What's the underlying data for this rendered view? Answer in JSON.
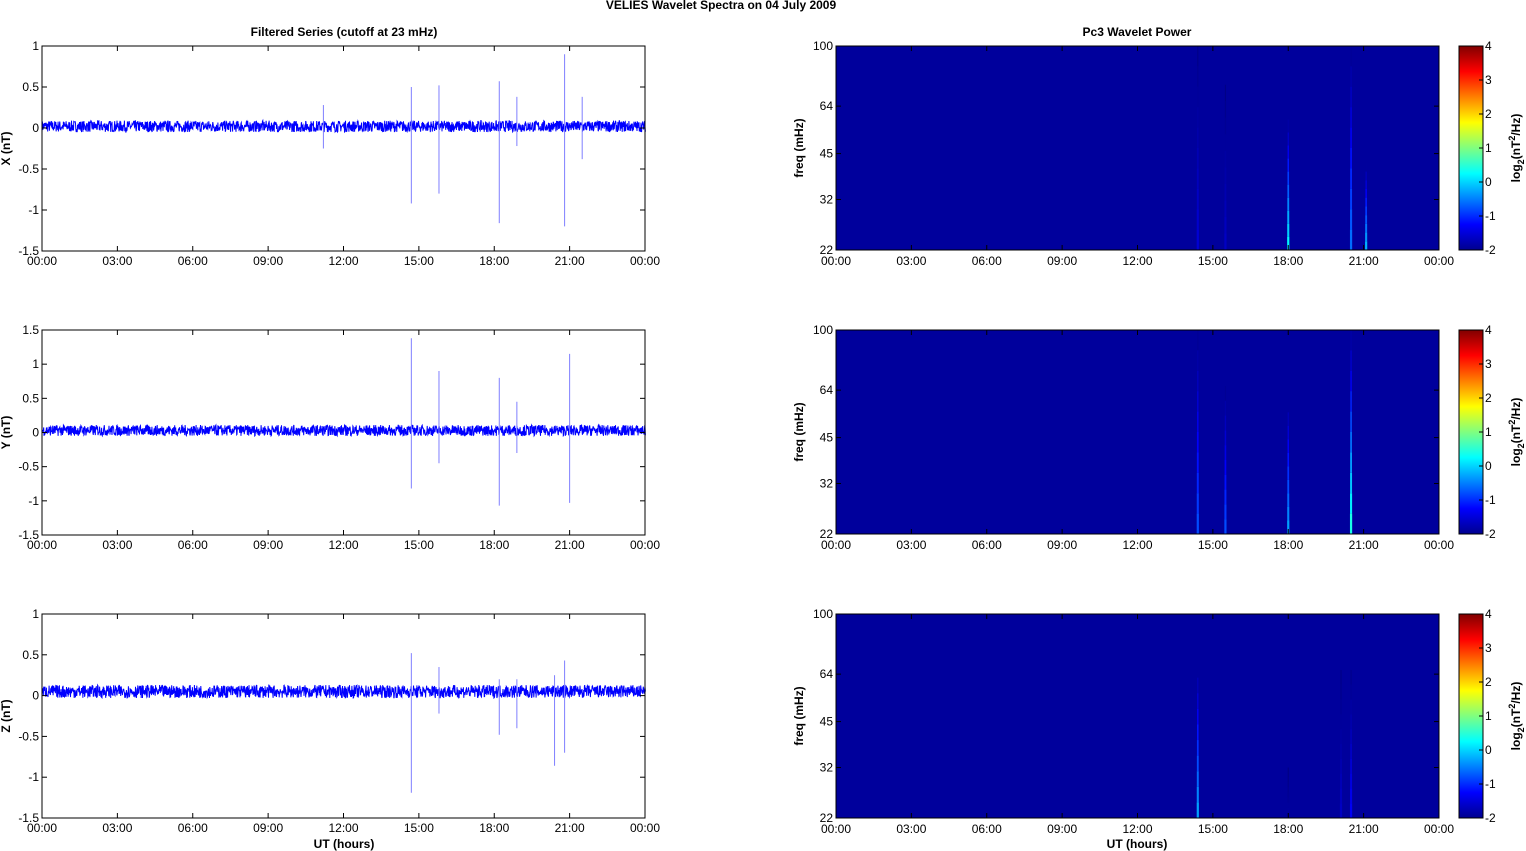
{
  "figure_title": "VELIES Wavelet Spectra on 04 July      2009",
  "left_column_title": "Filtered Series (cutoff at 23 mHz)",
  "right_column_title": "Pc3 Wavelet Power",
  "x_tick_labels": [
    "00:00",
    "03:00",
    "06:00",
    "09:00",
    "12:00",
    "15:00",
    "18:00",
    "21:00",
    "00:00"
  ],
  "x_label": "UT (hours)",
  "freq_label": "freq (mHz)",
  "freq_tick_labels": [
    "100",
    "64",
    "45",
    "32",
    "22"
  ],
  "freq_ticks_mhz": [
    100,
    64,
    45,
    32,
    22
  ],
  "colorbar": {
    "label_prefix": "log",
    "label_sub": "2",
    "label_mid": "(nT",
    "label_sup": "2",
    "label_suffix": "/Hz)",
    "ticks": [
      "4",
      "3",
      "2",
      "1",
      "0",
      "-1",
      "-2"
    ],
    "range": [
      -2,
      4
    ],
    "colormap": "jet"
  },
  "colors": {
    "series": "#0000ff",
    "background_power": "#00009c"
  },
  "chart_data": [
    {
      "type": "line",
      "title": "Filtered Series (cutoff at 23 mHz)",
      "xlabel": "",
      "ylabel": "X (nT)",
      "xlim_hours": [
        0,
        24
      ],
      "ylim": [
        -1.5,
        1
      ],
      "y_tick_labels": [
        "1",
        "0.5",
        "0",
        "-0.5",
        "-1",
        "-1.5"
      ],
      "y_ticks": [
        1,
        0.5,
        0,
        -0.5,
        -1,
        -1.5
      ],
      "baseline_offset": 0.02,
      "noise_amplitude": 0.07,
      "spikes": [
        {
          "t": 11.2,
          "max": 0.28,
          "min": -0.25
        },
        {
          "t": 14.7,
          "max": 0.5,
          "min": -0.92
        },
        {
          "t": 15.8,
          "max": 0.52,
          "min": -0.8
        },
        {
          "t": 18.2,
          "max": 0.57,
          "min": -1.16
        },
        {
          "t": 18.9,
          "max": 0.38,
          "min": -0.22
        },
        {
          "t": 20.8,
          "max": 0.9,
          "min": -1.2
        },
        {
          "t": 21.5,
          "max": 0.38,
          "min": -0.38
        }
      ]
    },
    {
      "type": "line",
      "xlabel": "",
      "ylabel": "Y (nT)",
      "xlim_hours": [
        0,
        24
      ],
      "ylim": [
        -1.5,
        1.5
      ],
      "y_tick_labels": [
        "1.5",
        "1",
        "0.5",
        "0",
        "-0.5",
        "-1",
        "-1.5"
      ],
      "y_ticks": [
        1.5,
        1,
        0.5,
        0,
        -0.5,
        -1,
        -1.5
      ],
      "baseline_offset": 0.03,
      "noise_amplitude": 0.08,
      "spikes": [
        {
          "t": 14.7,
          "max": 1.38,
          "min": -0.82
        },
        {
          "t": 15.8,
          "max": 0.9,
          "min": -0.45
        },
        {
          "t": 18.2,
          "max": 0.8,
          "min": -1.07
        },
        {
          "t": 18.9,
          "max": 0.45,
          "min": -0.3
        },
        {
          "t": 21.0,
          "max": 1.15,
          "min": -1.03
        }
      ]
    },
    {
      "type": "line",
      "xlabel": "UT (hours)",
      "ylabel": "Z (nT)",
      "xlim_hours": [
        0,
        24
      ],
      "ylim": [
        -1.5,
        1
      ],
      "y_tick_labels": [
        "1",
        "0.5",
        "0",
        "-0.5",
        "-1",
        "-1.5"
      ],
      "y_ticks": [
        1,
        0.5,
        0,
        -0.5,
        -1,
        -1.5
      ],
      "baseline_offset": 0.05,
      "noise_amplitude": 0.08,
      "spikes": [
        {
          "t": 14.7,
          "max": 0.52,
          "min": -1.19
        },
        {
          "t": 15.8,
          "max": 0.35,
          "min": -0.22
        },
        {
          "t": 18.2,
          "max": 0.2,
          "min": -0.48
        },
        {
          "t": 18.9,
          "max": 0.2,
          "min": -0.4
        },
        {
          "t": 20.4,
          "max": 0.25,
          "min": -0.86
        },
        {
          "t": 20.8,
          "max": 0.43,
          "min": -0.7
        }
      ]
    },
    {
      "type": "heatmap",
      "title": "Pc3 Wavelet Power",
      "xlabel": "",
      "ylabel": "freq (mHz)",
      "xlim_hours": [
        0,
        24
      ],
      "ylim_mhz": [
        22,
        100
      ],
      "background_log2_power": -2,
      "streaks": [
        {
          "t": 14.4,
          "fmax": 100,
          "peak": -1.5
        },
        {
          "t": 15.5,
          "fmax": 75,
          "peak": -1.6
        },
        {
          "t": 18.0,
          "fmax": 58,
          "peak": 0.2
        },
        {
          "t": 20.5,
          "fmax": 100,
          "peak": -0.6
        },
        {
          "t": 21.1,
          "fmax": 42,
          "peak": -0.2
        }
      ]
    },
    {
      "type": "heatmap",
      "xlabel": "",
      "ylabel": "freq (mHz)",
      "xlim_hours": [
        0,
        24
      ],
      "ylim_mhz": [
        22,
        100
      ],
      "background_log2_power": -2,
      "streaks": [
        {
          "t": 14.4,
          "fmax": 100,
          "peak": -0.8
        },
        {
          "t": 15.5,
          "fmax": 66,
          "peak": -0.8
        },
        {
          "t": 18.0,
          "fmax": 60,
          "peak": -0.3
        },
        {
          "t": 20.5,
          "fmax": 100,
          "peak": 0.4
        }
      ]
    },
    {
      "type": "heatmap",
      "xlabel": "UT (hours)",
      "ylabel": "freq (mHz)",
      "xlim_hours": [
        0,
        24
      ],
      "ylim_mhz": [
        22,
        100
      ],
      "background_log2_power": -2,
      "streaks": [
        {
          "t": 14.4,
          "fmax": 70,
          "peak": -0.3
        },
        {
          "t": 18.0,
          "fmax": 32,
          "peak": -1.8
        },
        {
          "t": 20.1,
          "fmax": 66,
          "peak": -1.6
        },
        {
          "t": 20.5,
          "fmax": 66,
          "peak": -1.3
        }
      ]
    }
  ]
}
